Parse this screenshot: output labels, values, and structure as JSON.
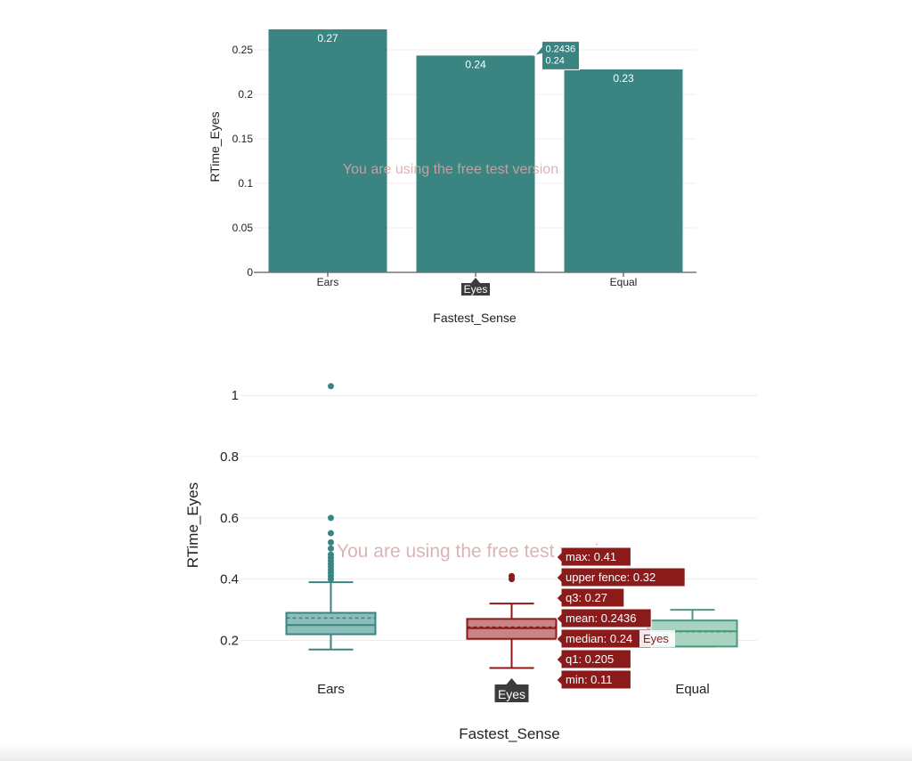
{
  "watermark": "You are using the free test version",
  "chart_data": [
    {
      "type": "bar",
      "xlabel": "Fastest_Sense",
      "ylabel": "RTime_Eyes",
      "categories": [
        "Ears",
        "Eyes",
        "Equal"
      ],
      "values": [
        0.273,
        0.2436,
        0.228
      ],
      "data_labels": [
        "0.27",
        "0.24",
        "0.23"
      ],
      "ylim": [
        0,
        0.273
      ],
      "yticks": [
        0,
        0.05,
        0.1,
        0.15,
        0.2,
        0.25
      ],
      "ytick_labels": [
        "0",
        "0.05",
        "0.1",
        "0.15",
        "0.2",
        "0.25"
      ],
      "color": "#3a8582",
      "grid": true,
      "tooltip": {
        "category": "Eyes",
        "lines": [
          "0.2436",
          "0.24"
        ]
      },
      "hover_label": "Eyes"
    },
    {
      "type": "box",
      "xlabel": "Fastest_Sense",
      "ylabel": "RTime_Eyes",
      "ylim": [
        0.12,
        1.05
      ],
      "yticks": [
        0.2,
        0.4,
        0.6,
        0.8,
        1
      ],
      "ytick_labels": [
        "0.2",
        "0.4",
        "0.6",
        "0.8",
        "1"
      ],
      "grid": true,
      "categories": [
        "Ears",
        "Eyes",
        "Equal"
      ],
      "boxes": [
        {
          "name": "Ears",
          "min": 0.17,
          "q1": 0.22,
          "median": 0.25,
          "mean": 0.273,
          "q3": 0.29,
          "max": 0.39,
          "outliers": [
            0.4,
            0.41,
            0.42,
            0.43,
            0.44,
            0.45,
            0.46,
            0.47,
            0.48,
            0.5,
            0.52,
            0.55,
            0.6,
            1.03
          ],
          "color": "#3a8582",
          "fill": "#8cbebc"
        },
        {
          "name": "Eyes",
          "min": 0.11,
          "q1": 0.205,
          "median": 0.24,
          "mean": 0.2436,
          "q3": 0.27,
          "max": 0.32,
          "outliers": [
            0.4,
            0.41
          ],
          "color": "#8b1a1a",
          "fill": "#c98484"
        },
        {
          "name": "Equal",
          "min": 0.18,
          "q1": 0.18,
          "median": 0.23,
          "mean": 0.228,
          "q3": 0.265,
          "max": 0.3,
          "outliers": [],
          "color": "#4c9a7c",
          "fill": "#a9d3c1"
        }
      ],
      "tooltips": [
        {
          "text": "max: 0.41",
          "value": 0.41
        },
        {
          "text": "upper fence: 0.32",
          "value": 0.32
        },
        {
          "text": "q3: 0.27",
          "value": 0.27
        },
        {
          "text": "mean: 0.2436",
          "value": 0.2436
        },
        {
          "text": "median: 0.24",
          "value": 0.24
        },
        {
          "text": "q1: 0.205",
          "value": 0.205
        },
        {
          "text": "min: 0.11",
          "value": 0.11
        }
      ],
      "tooltip_series": "Eyes",
      "hover_label": "Eyes"
    }
  ]
}
